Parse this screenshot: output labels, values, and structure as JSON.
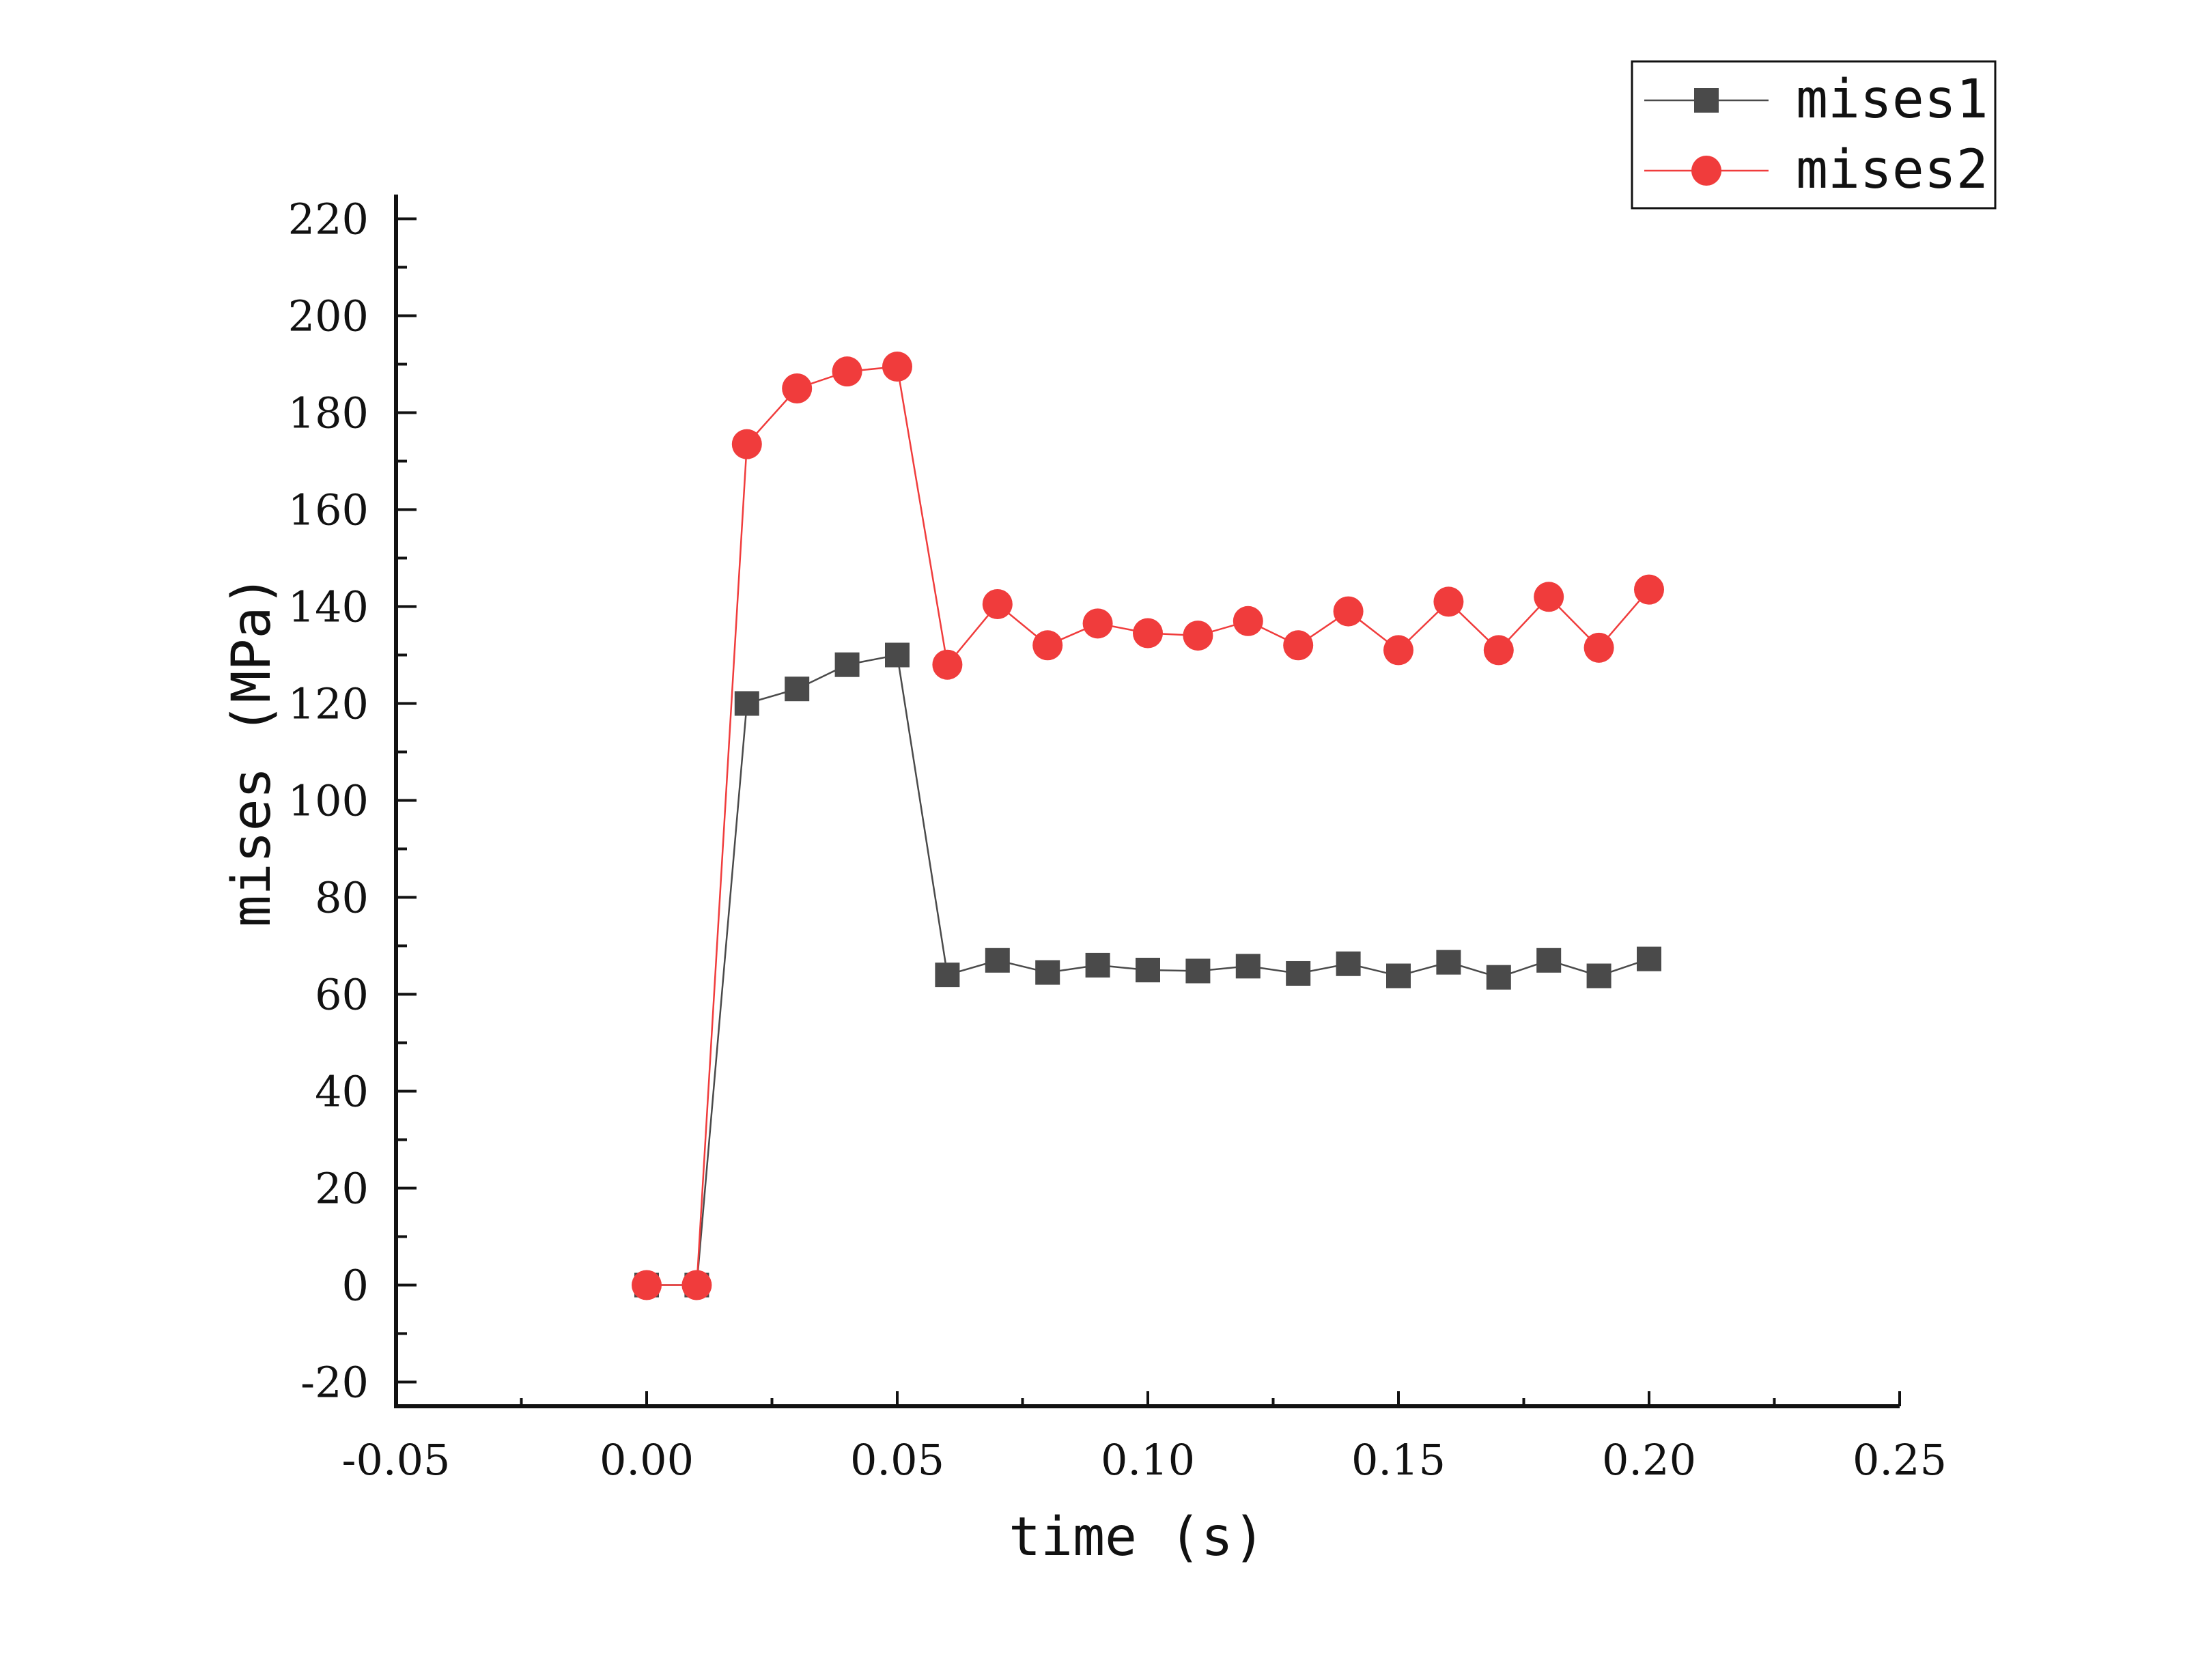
{
  "chart_data": {
    "type": "line",
    "xlabel": "time (s)",
    "ylabel": "mises (MPa)",
    "xlim": [
      -0.05,
      0.25
    ],
    "ylim": [
      -25,
      225
    ],
    "x_ticks": [
      "-0.05",
      "0.00",
      "0.05",
      "0.10",
      "0.15",
      "0.20",
      "0.25"
    ],
    "x_tick_values": [
      -0.05,
      0.0,
      0.05,
      0.1,
      0.15,
      0.2,
      0.25
    ],
    "y_ticks": [
      "-20",
      "0",
      "20",
      "40",
      "60",
      "80",
      "100",
      "120",
      "140",
      "160",
      "180",
      "200",
      "220"
    ],
    "y_tick_values": [
      -20,
      0,
      20,
      40,
      60,
      80,
      100,
      120,
      140,
      160,
      180,
      200,
      220
    ],
    "grid": false,
    "legend_position": "top-right",
    "x": [
      0.0,
      0.01,
      0.02,
      0.03,
      0.04,
      0.05,
      0.06,
      0.07,
      0.08,
      0.09,
      0.1,
      0.11,
      0.12,
      0.13,
      0.14,
      0.15,
      0.16,
      0.17,
      0.18,
      0.19,
      0.2
    ],
    "series": [
      {
        "name": "mises1",
        "color": "#4a4a4a",
        "marker": "square",
        "values": [
          0,
          0,
          120,
          123,
          128,
          130,
          64,
          67,
          64.5,
          66,
          65,
          64.8,
          65.8,
          64.3,
          66.3,
          63.8,
          66.6,
          63.5,
          67,
          63.8,
          67.3
        ]
      },
      {
        "name": "mises2",
        "color": "#f03c3c",
        "marker": "circle",
        "values": [
          0,
          0,
          173.5,
          185,
          188.5,
          189.5,
          128,
          140.5,
          132,
          136.5,
          134.5,
          134,
          137,
          132,
          139,
          131,
          141,
          131,
          142,
          131.5,
          143.5
        ]
      }
    ]
  }
}
